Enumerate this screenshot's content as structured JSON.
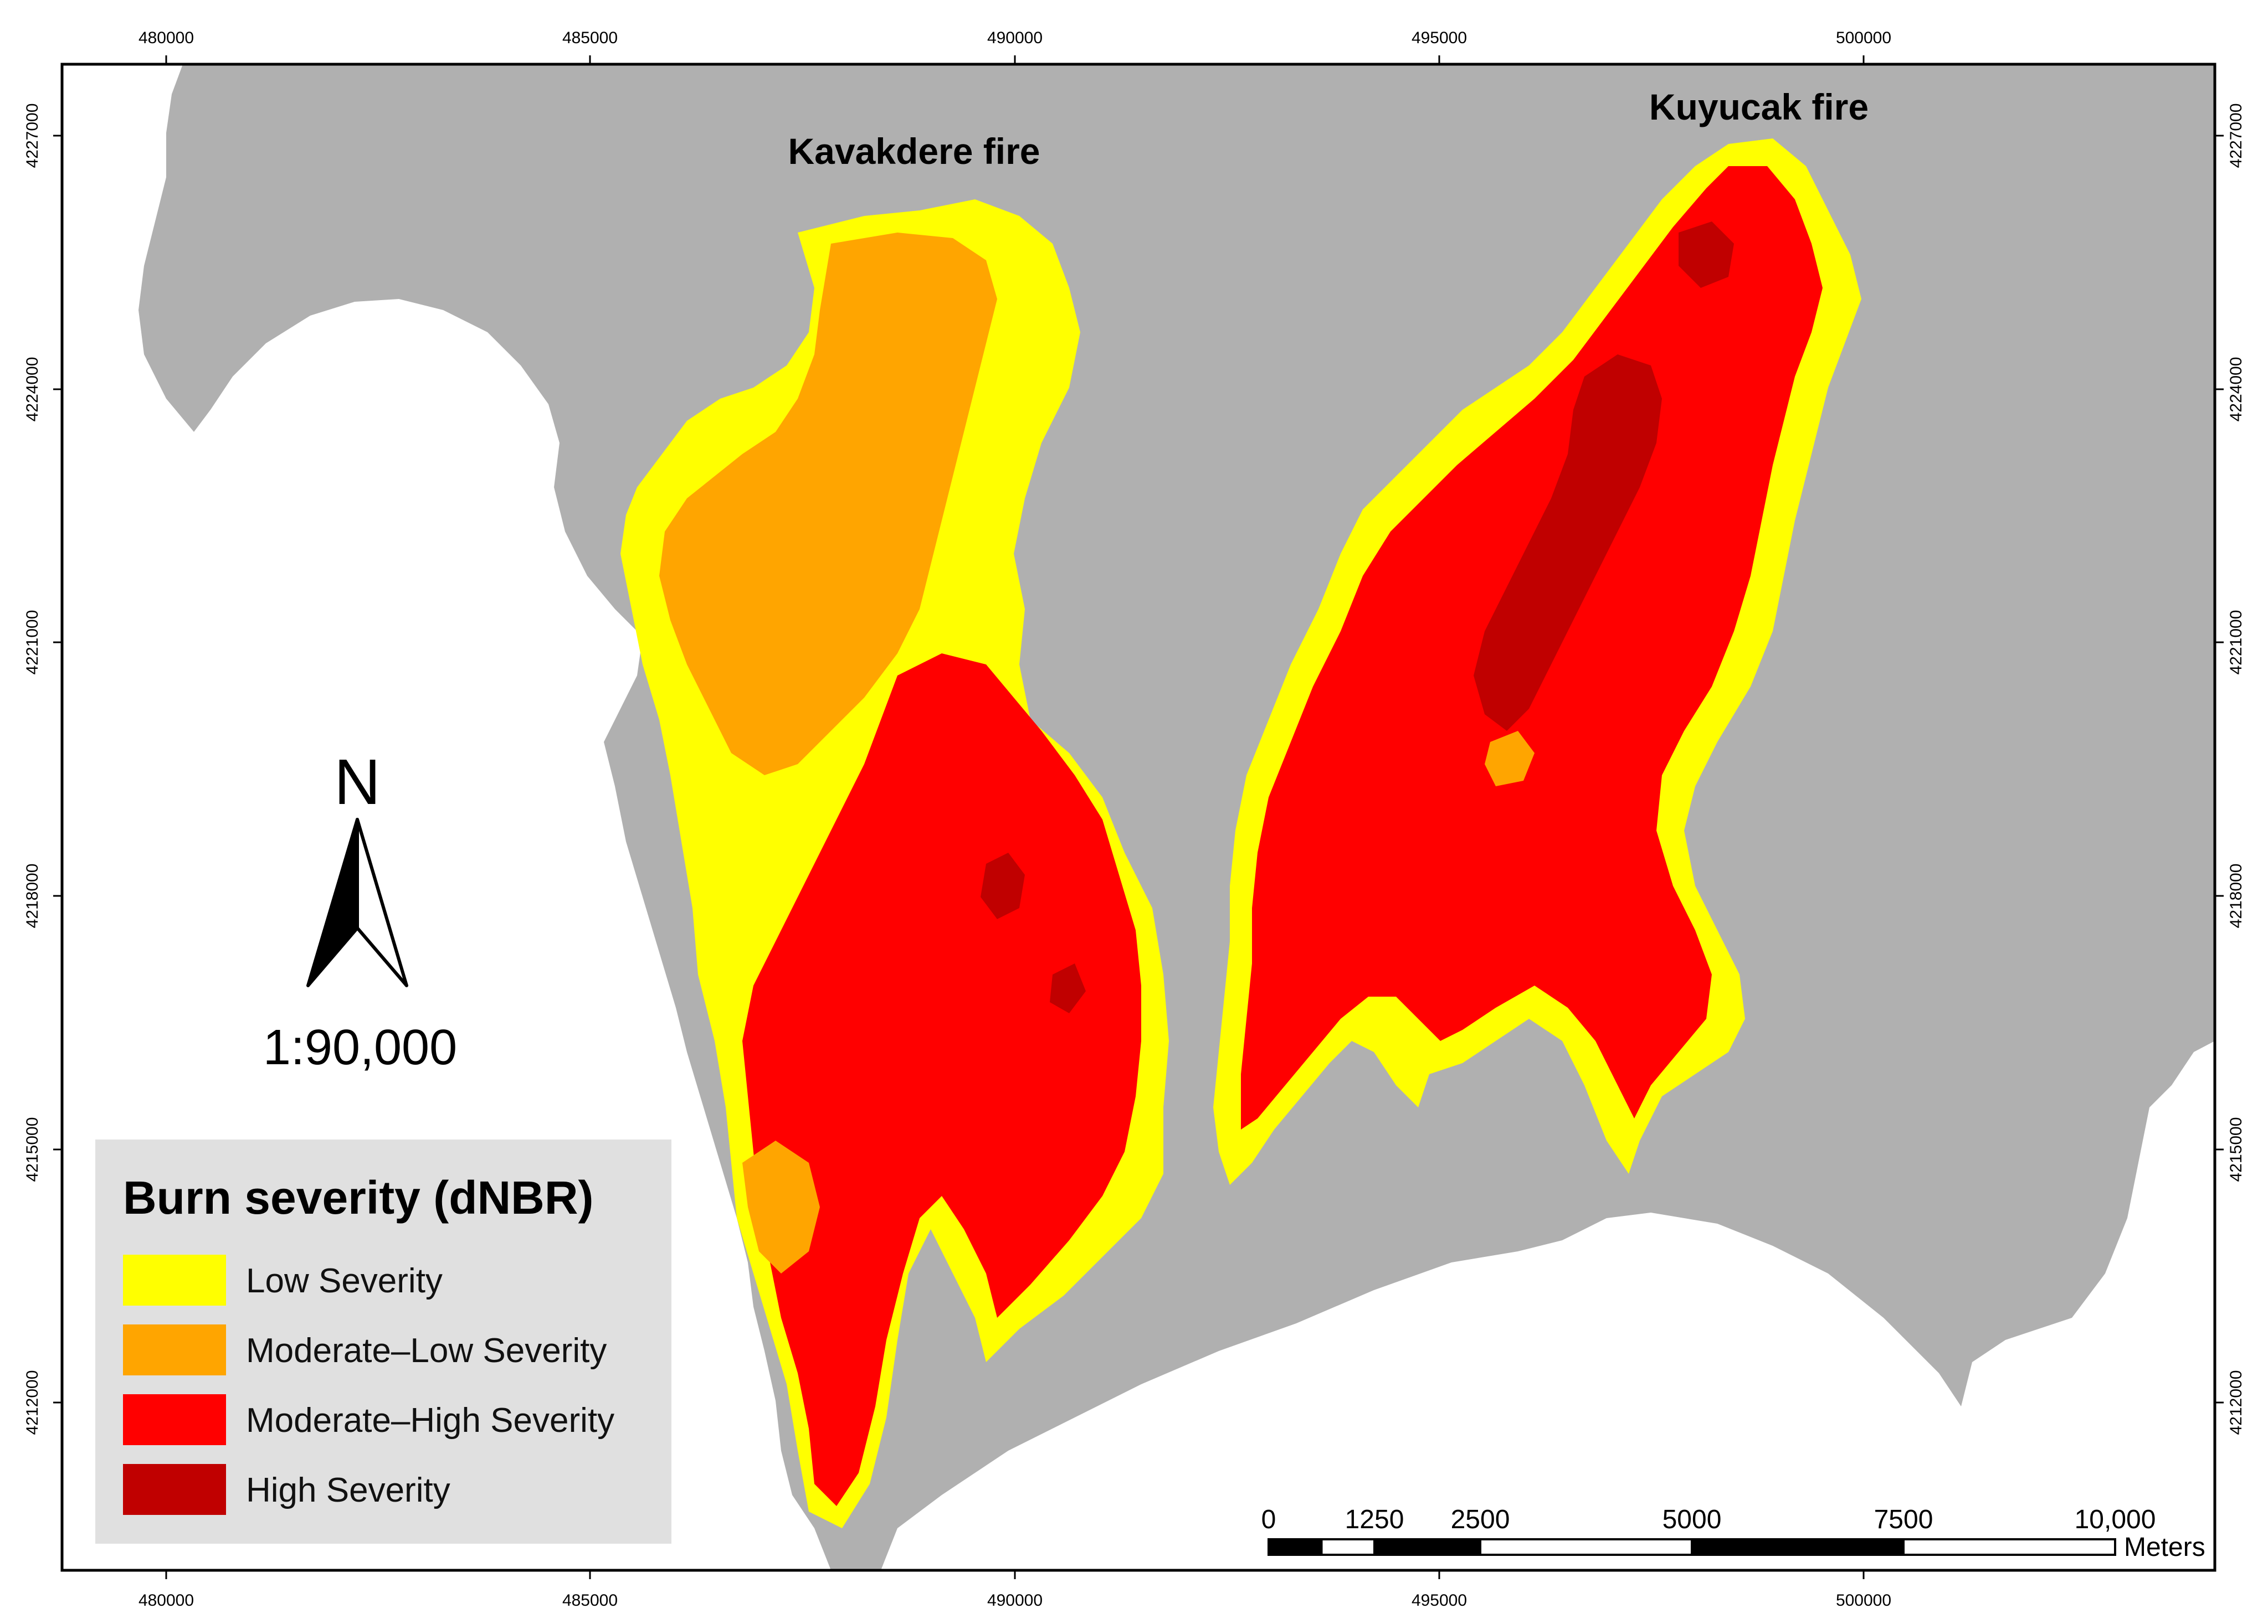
{
  "map": {
    "x_ticks": [
      "480000",
      "485000",
      "490000",
      "495000",
      "500000"
    ],
    "y_ticks": [
      "4227000",
      "4224000",
      "4221000",
      "4218000",
      "4215000",
      "4212000"
    ],
    "fires": [
      {
        "id": "kavakdere",
        "label": "Kavakdere fire"
      },
      {
        "id": "kuyucak",
        "label": "Kuyucak fire"
      }
    ],
    "colors": {
      "land": "#b0b0b0",
      "sea": "#ffffff",
      "low": "#ffff00",
      "moderate_low": "#ffa500",
      "moderate_high": "#ff0000",
      "high": "#c00000"
    }
  },
  "north_arrow": {
    "letter": "N",
    "scale": "1:90,000"
  },
  "legend": {
    "title": "Burn severity (dNBR)",
    "items": [
      {
        "label": "Low Severity",
        "color": "#ffff00"
      },
      {
        "label": "Moderate–Low Severity",
        "color": "#ffa500"
      },
      {
        "label": "Moderate–High Severity",
        "color": "#ff0000"
      },
      {
        "label": "High Severity",
        "color": "#c00000"
      }
    ]
  },
  "scale_bar": {
    "labels": [
      "0",
      "1250",
      "2500",
      "5000",
      "7500",
      "10,000"
    ],
    "unit": "Meters"
  }
}
